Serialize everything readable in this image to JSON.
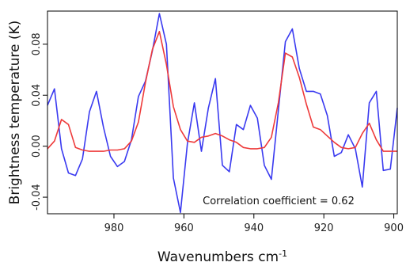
{
  "chart_data": {
    "type": "line",
    "title": "",
    "xlabel": "Wavenumbers cm",
    "xlabel_superscript": "-1",
    "ylabel": "Brightness temperature (K)",
    "annotation": "Correlation coefficient = 0.62",
    "xlim": [
      999,
      899
    ],
    "x_reversed": true,
    "ylim": [
      -0.053,
      0.106
    ],
    "grid": false,
    "x_ticks": [
      980,
      960,
      940,
      920,
      900
    ],
    "x_tick_labels": [
      "980",
      "960",
      "940",
      "920",
      "900"
    ],
    "y_ticks": [
      -0.04,
      0.0,
      0.04,
      0.08
    ],
    "y_tick_labels": [
      "-0.04",
      "0.00",
      "0.04",
      "0.08"
    ],
    "series": [
      {
        "color": "#3a3af0",
        "x": [
          999,
          997,
          995,
          993,
          991,
          989,
          987,
          985,
          983,
          981,
          979,
          977,
          975,
          973,
          971,
          969,
          967,
          965,
          963,
          961,
          959,
          957,
          955,
          953,
          951,
          949,
          947,
          945,
          943,
          941,
          939,
          937,
          935,
          933,
          931,
          929,
          927,
          925,
          923,
          921,
          919,
          917,
          915,
          913,
          911,
          909,
          907,
          905,
          903,
          901,
          899
        ],
        "y": [
          0.032,
          0.045,
          -0.002,
          -0.021,
          -0.023,
          -0.01,
          0.027,
          0.043,
          0.015,
          -0.008,
          -0.016,
          -0.012,
          0.005,
          0.039,
          0.051,
          0.075,
          0.104,
          0.08,
          -0.025,
          -0.052,
          0.002,
          0.034,
          -0.004,
          0.03,
          0.053,
          -0.015,
          -0.02,
          0.017,
          0.013,
          0.032,
          0.022,
          -0.015,
          -0.026,
          0.028,
          0.082,
          0.092,
          0.061,
          0.043,
          0.043,
          0.041,
          0.024,
          -0.008,
          -0.005,
          0.009,
          -0.002,
          -0.032,
          0.034,
          0.043,
          -0.019,
          -0.018,
          0.03
        ]
      },
      {
        "color": "#ee3a3a",
        "x": [
          999,
          997,
          995,
          993,
          991,
          989,
          987,
          985,
          983,
          981,
          979,
          977,
          975,
          973,
          971,
          969,
          967,
          965,
          963,
          961,
          959,
          957,
          955,
          953,
          951,
          949,
          947,
          945,
          943,
          941,
          939,
          937,
          935,
          933,
          931,
          929,
          927,
          925,
          923,
          921,
          919,
          917,
          915,
          913,
          911,
          909,
          907,
          905,
          903,
          901,
          899
        ],
        "y": [
          -0.002,
          0.004,
          0.021,
          0.017,
          -0.001,
          -0.003,
          -0.004,
          -0.004,
          -0.004,
          -0.003,
          -0.003,
          -0.002,
          0.004,
          0.019,
          0.05,
          0.076,
          0.09,
          0.064,
          0.031,
          0.013,
          0.004,
          0.003,
          0.007,
          0.008,
          0.01,
          0.008,
          0.005,
          0.003,
          -0.001,
          -0.002,
          -0.002,
          -0.001,
          0.007,
          0.034,
          0.073,
          0.07,
          0.054,
          0.033,
          0.015,
          0.013,
          0.008,
          0.003,
          -0.001,
          -0.002,
          -0.001,
          0.01,
          0.018,
          0.005,
          -0.004,
          -0.004,
          -0.004
        ]
      }
    ]
  }
}
